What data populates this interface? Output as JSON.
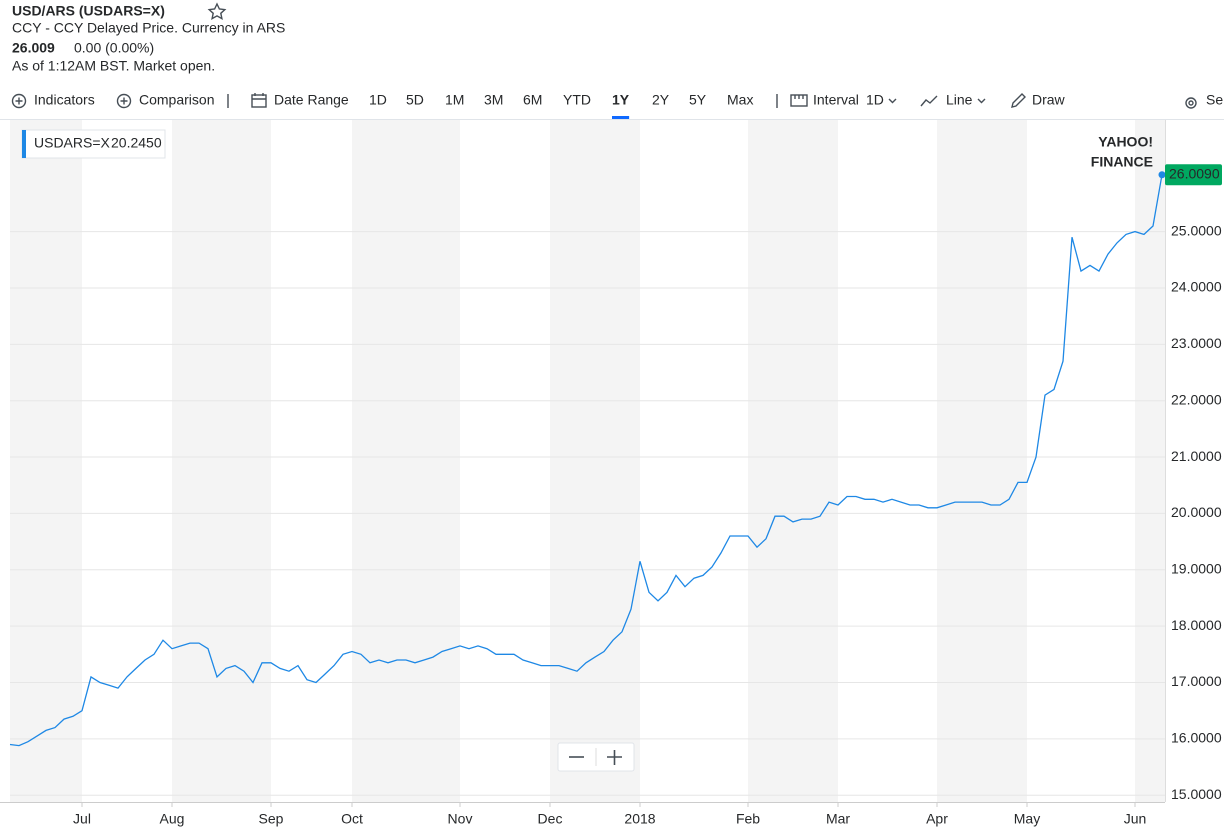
{
  "header": {
    "title": "USD/ARS (USDARS=X)",
    "subtitle": "CCY - CCY Delayed Price. Currency in ARS",
    "price": "26.009",
    "change": "0.00 (0.00%)",
    "status": "As of 1:12AM BST. Market open."
  },
  "toolbar": {
    "items": [
      "Indicators",
      "Comparison",
      "Date Range",
      "1D",
      "5D",
      "1M",
      "3M",
      "6M",
      "YTD",
      "1Y",
      "2Y",
      "5Y",
      "Max",
      "Interval",
      "1D",
      "Line",
      "Draw",
      "Se"
    ],
    "active": 9
  },
  "chart_data": {
    "type": "line",
    "categories": [
      null,
      null,
      null,
      null,
      null,
      null,
      null,
      null,
      "Jul",
      null,
      null,
      null,
      null,
      null,
      null,
      null,
      null,
      null,
      "Aug",
      null,
      null,
      null,
      null,
      null,
      null,
      null,
      null,
      null,
      null,
      "Sep",
      null,
      null,
      null,
      null,
      null,
      null,
      null,
      null,
      "Oct",
      null,
      null,
      null,
      null,
      null,
      null,
      null,
      null,
      null,
      null,
      null,
      "Nov",
      null,
      null,
      null,
      null,
      null,
      null,
      null,
      null,
      null,
      "Dec",
      null,
      null,
      null,
      null,
      null,
      null,
      null,
      null,
      null,
      "2018",
      null,
      null,
      null,
      null,
      null,
      null,
      null,
      null,
      null,
      null,
      null,
      "Feb",
      null,
      null,
      null,
      null,
      null,
      null,
      null,
      null,
      null,
      "Mar",
      null,
      null,
      null,
      null,
      null,
      null,
      null,
      null,
      null,
      null,
      "Apr",
      null,
      null,
      null,
      null,
      null,
      null,
      null,
      null,
      null,
      "May",
      null,
      null,
      null,
      null,
      null,
      null,
      null,
      null,
      null,
      null,
      null,
      "Jun",
      null,
      null,
      null
    ],
    "series": [
      {
        "name": "USDARS=X",
        "color": "#1e88e5",
        "values": [
          15.9,
          15.88,
          15.95,
          16.05,
          16.15,
          16.2,
          16.35,
          16.4,
          16.5,
          17.1,
          17.0,
          16.95,
          16.9,
          17.1,
          17.25,
          17.4,
          17.5,
          17.75,
          17.6,
          17.65,
          17.7,
          17.7,
          17.6,
          17.1,
          17.25,
          17.3,
          17.2,
          17.0,
          17.35,
          17.35,
          17.25,
          17.2,
          17.3,
          17.05,
          17.0,
          17.15,
          17.3,
          17.5,
          17.55,
          17.5,
          17.35,
          17.4,
          17.35,
          17.4,
          17.4,
          17.35,
          17.4,
          17.45,
          17.55,
          17.6,
          17.65,
          17.6,
          17.65,
          17.6,
          17.5,
          17.5,
          17.5,
          17.4,
          17.35,
          17.3,
          17.3,
          17.3,
          17.25,
          17.2,
          17.35,
          17.45,
          17.55,
          17.75,
          17.9,
          18.3,
          19.15,
          18.6,
          18.45,
          18.6,
          18.9,
          18.7,
          18.85,
          18.9,
          19.05,
          19.3,
          19.6,
          19.6,
          19.6,
          19.4,
          19.55,
          19.95,
          19.95,
          19.85,
          19.9,
          19.9,
          19.95,
          20.2,
          20.15,
          20.3,
          20.3,
          20.25,
          20.25,
          20.2,
          20.25,
          20.2,
          20.15,
          20.15,
          20.1,
          20.1,
          20.15,
          20.2,
          20.2,
          20.2,
          20.2,
          20.15,
          20.15,
          20.25,
          20.55,
          20.55,
          21.0,
          22.1,
          22.2,
          22.7,
          24.9,
          24.3,
          24.4,
          24.3,
          24.6,
          24.8,
          24.95,
          25.0,
          24.95,
          25.1,
          26.009
        ]
      }
    ],
    "legend_value": {
      "value": 20.245,
      "label": "20.2450"
    },
    "last_value_label": {
      "value": 26.009,
      "label": "26.0090"
    },
    "label_color": "#00a860",
    "watermark": [
      "YAHOO!",
      "FINANCE"
    ],
    "ylim": [
      14.88,
      26.98
    ],
    "yticks": [
      {
        "value": 15,
        "label": "15.0000"
      },
      {
        "value": 16,
        "label": "16.0000"
      },
      {
        "value": 17,
        "label": "17.0000"
      },
      {
        "value": 18,
        "label": "18.0000"
      },
      {
        "value": 19,
        "label": "19.0000"
      },
      {
        "value": 20,
        "label": "20.0000"
      },
      {
        "value": 21,
        "label": "21.0000"
      },
      {
        "value": 22,
        "label": "22.0000"
      },
      {
        "value": 23,
        "label": "23.0000"
      },
      {
        "value": 24,
        "label": "24.0000"
      },
      {
        "value": 25,
        "label": "25.0000"
      }
    ],
    "grid": true
  }
}
